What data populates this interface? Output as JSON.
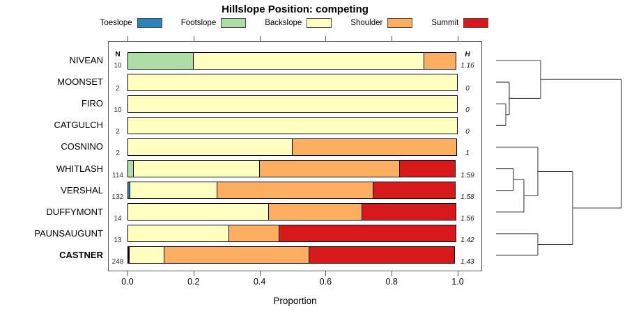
{
  "title": "Hillslope Position: competing",
  "header": {
    "n": "N",
    "h": "H"
  },
  "legend": {
    "items": [
      {
        "label": "Toeslope",
        "color": "#2B83BA"
      },
      {
        "label": "Footslope",
        "color": "#ABDDA4"
      },
      {
        "label": "Backslope",
        "color": "#FFFFBF"
      },
      {
        "label": "Shoulder",
        "color": "#FDAE61"
      },
      {
        "label": "Summit",
        "color": "#D7191C"
      }
    ]
  },
  "chart_data": {
    "type": "bar",
    "stacked": true,
    "orientation": "horizontal",
    "title": "Hillslope Position: competing",
    "xlabel": "Proportion",
    "xlim": [
      0,
      1
    ],
    "x_tick_values": [
      0.0,
      0.2,
      0.4,
      0.6,
      0.8,
      1.0
    ],
    "x_tick_labels": [
      "0.0",
      "0.2",
      "0.4",
      "0.6",
      "0.8",
      "1.0"
    ],
    "series_order": [
      "Toeslope",
      "Footslope",
      "Backslope",
      "Shoulder",
      "Summit"
    ],
    "colors": {
      "Toeslope": "#2B83BA",
      "Footslope": "#ABDDA4",
      "Backslope": "#FFFFBF",
      "Shoulder": "#FDAE61",
      "Summit": "#D7191C"
    },
    "rows": [
      {
        "name": "NIVEAN",
        "n": "10",
        "h": "1.16",
        "bold": false,
        "segments": {
          "Footslope": 0.2,
          "Backslope": 0.7,
          "Shoulder": 0.1
        }
      },
      {
        "name": "MOONSET",
        "n": "2",
        "h": "0",
        "bold": false,
        "segments": {
          "Backslope": 1.0
        }
      },
      {
        "name": "FIRO",
        "n": "10",
        "h": "0",
        "bold": false,
        "segments": {
          "Backslope": 1.0
        }
      },
      {
        "name": "CATGULCH",
        "n": "2",
        "h": "0",
        "bold": false,
        "segments": {
          "Backslope": 1.0
        }
      },
      {
        "name": "COSNINO",
        "n": "2",
        "h": "1",
        "bold": false,
        "segments": {
          "Backslope": 0.5,
          "Shoulder": 0.5
        }
      },
      {
        "name": "WHITLASH",
        "n": "114",
        "h": "1.59",
        "bold": false,
        "segments": {
          "Footslope": 0.018,
          "Backslope": 0.386,
          "Shoulder": 0.426,
          "Summit": 0.17
        }
      },
      {
        "name": "VERSHAL",
        "n": "132",
        "h": "1.58",
        "bold": false,
        "segments": {
          "Toeslope": 0.008,
          "Backslope": 0.267,
          "Shoulder": 0.475,
          "Summit": 0.25
        }
      },
      {
        "name": "DUFFYMONT",
        "n": "14",
        "h": "1.56",
        "bold": false,
        "segments": {
          "Backslope": 0.429,
          "Shoulder": 0.285,
          "Summit": 0.286
        }
      },
      {
        "name": "PAUNSAUGUNT",
        "n": "13",
        "h": "1.42",
        "bold": false,
        "segments": {
          "Backslope": 0.308,
          "Shoulder": 0.154,
          "Summit": 0.538
        }
      },
      {
        "name": "CASTNER",
        "n": "248",
        "h": "1.43",
        "bold": true,
        "segments": {
          "Toeslope": 0.004,
          "Footslope": 0.004,
          "Backslope": 0.107,
          "Shoulder": 0.441,
          "Summit": 0.444
        }
      }
    ]
  },
  "dendrogram": {
    "segments": [
      [
        712,
        87.0,
        776,
        87.0
      ],
      [
        712,
        118.1,
        731,
        118.1
      ],
      [
        712,
        149.2,
        726,
        149.2
      ],
      [
        712,
        180.3,
        726,
        180.3
      ],
      [
        726,
        149.2,
        726,
        180.3
      ],
      [
        726,
        164.8,
        731,
        164.8
      ],
      [
        731,
        118.1,
        731,
        164.8
      ],
      [
        731,
        141.4,
        776,
        141.4
      ],
      [
        776,
        87.0,
        776,
        141.4
      ],
      [
        776,
        114.2,
        892,
        114.2
      ],
      [
        712,
        211.4,
        772,
        211.4
      ],
      [
        712,
        242.6,
        737,
        242.6
      ],
      [
        712,
        273.7,
        737,
        273.7
      ],
      [
        737,
        242.6,
        737,
        273.7
      ],
      [
        737,
        258.2,
        752,
        258.2
      ],
      [
        712,
        304.8,
        752,
        304.8
      ],
      [
        752,
        258.2,
        752,
        304.8
      ],
      [
        752,
        281.5,
        772,
        281.5
      ],
      [
        772,
        211.4,
        772,
        281.5
      ],
      [
        772,
        246.5,
        822,
        246.5
      ],
      [
        712,
        335.9,
        772,
        335.9
      ],
      [
        712,
        367.0,
        772,
        367.0
      ],
      [
        772,
        335.9,
        772,
        367.0
      ],
      [
        772,
        351.5,
        822,
        351.5
      ],
      [
        822,
        246.5,
        822,
        351.5
      ],
      [
        822,
        299.0,
        892,
        299.0
      ],
      [
        892,
        114.2,
        892,
        299.0
      ]
    ]
  }
}
